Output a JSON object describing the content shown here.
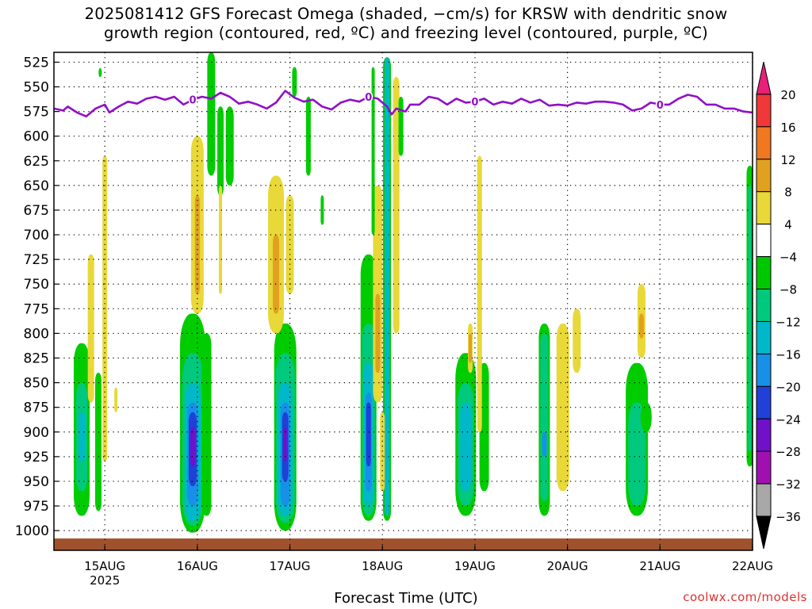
{
  "title_line1": "2025081412 GFS Forecast Omega (shaded, −cm/s) for KRSW with dendritic snow",
  "title_line2": "growth region (contoured, red, ºC) and freezing level (contoured, purple, ºC)",
  "watermark": "coolwx.com/models",
  "chart_data": {
    "type": "heatmap",
    "title": "2025081412 GFS Forecast Omega (shaded, −cm/s) for KRSW with dendritic snow growth region (contoured, red, ºC) and freezing level (contoured, purple, ºC)",
    "xlabel": "Forecast Time (UTC)",
    "ylabel": "",
    "x_ticks": [
      "15AUG",
      "16AUG",
      "17AUG",
      "18AUG",
      "19AUG",
      "20AUG",
      "21AUG",
      "22AUG"
    ],
    "x_year_label": "2025",
    "y_ticks": [
      525,
      550,
      575,
      600,
      625,
      650,
      675,
      700,
      725,
      750,
      775,
      800,
      825,
      850,
      875,
      900,
      925,
      950,
      975,
      1000
    ],
    "ylim": [
      1020,
      515
    ],
    "xlim_days_from_15aug": [
      -0.55,
      7.0
    ],
    "grid": true,
    "colorbar_levels": [
      20,
      16,
      12,
      8,
      4,
      -4,
      -8,
      -12,
      -16,
      -20,
      -24,
      -28,
      -32,
      -36
    ],
    "colorbar_colors": [
      "#e8207a",
      "#f03838",
      "#f07820",
      "#e0a020",
      "#e8d838",
      "#ffffff",
      "#00c800",
      "#00c87c",
      "#00b8c8",
      "#1890e8",
      "#2040d8",
      "#7010c8",
      "#a010b0",
      "#a8a8a8",
      "#000000"
    ],
    "freezing_level": {
      "label": "0",
      "points": [
        [
          -0.55,
          572
        ],
        [
          -0.45,
          574
        ],
        [
          -0.4,
          570
        ],
        [
          -0.3,
          576
        ],
        [
          -0.2,
          580
        ],
        [
          -0.1,
          572
        ],
        [
          0.0,
          568
        ],
        [
          0.05,
          576
        ],
        [
          0.15,
          570
        ],
        [
          0.25,
          565
        ],
        [
          0.35,
          567
        ],
        [
          0.45,
          562
        ],
        [
          0.55,
          560
        ],
        [
          0.65,
          563
        ],
        [
          0.75,
          560
        ],
        [
          0.85,
          568
        ],
        [
          0.95,
          563
        ],
        [
          1.05,
          560
        ],
        [
          1.15,
          562
        ],
        [
          1.25,
          556
        ],
        [
          1.35,
          560
        ],
        [
          1.45,
          567
        ],
        [
          1.55,
          565
        ],
        [
          1.65,
          568
        ],
        [
          1.75,
          572
        ],
        [
          1.85,
          566
        ],
        [
          1.95,
          554
        ],
        [
          2.05,
          561
        ],
        [
          2.15,
          565
        ],
        [
          2.25,
          563
        ],
        [
          2.35,
          570
        ],
        [
          2.45,
          573
        ],
        [
          2.55,
          566
        ],
        [
          2.65,
          563
        ],
        [
          2.75,
          565
        ],
        [
          2.85,
          560
        ],
        [
          2.95,
          562
        ],
        [
          3.0,
          566
        ],
        [
          3.05,
          570
        ],
        [
          3.1,
          578
        ],
        [
          3.15,
          572
        ],
        [
          3.25,
          575
        ],
        [
          3.3,
          568
        ],
        [
          3.4,
          568
        ],
        [
          3.5,
          560
        ],
        [
          3.6,
          562
        ],
        [
          3.7,
          568
        ],
        [
          3.8,
          562
        ],
        [
          3.9,
          566
        ],
        [
          4.0,
          565
        ],
        [
          4.1,
          562
        ],
        [
          4.2,
          568
        ],
        [
          4.3,
          565
        ],
        [
          4.4,
          567
        ],
        [
          4.5,
          562
        ],
        [
          4.6,
          566
        ],
        [
          4.7,
          563
        ],
        [
          4.8,
          569
        ],
        [
          4.9,
          568
        ],
        [
          5.0,
          569
        ],
        [
          5.1,
          566
        ],
        [
          5.2,
          567
        ],
        [
          5.3,
          565
        ],
        [
          5.4,
          565
        ],
        [
          5.5,
          566
        ],
        [
          5.6,
          568
        ],
        [
          5.7,
          574
        ],
        [
          5.8,
          572
        ],
        [
          5.9,
          566
        ],
        [
          6.0,
          568
        ],
        [
          6.1,
          568
        ],
        [
          6.2,
          562
        ],
        [
          6.3,
          558
        ],
        [
          6.4,
          560
        ],
        [
          6.5,
          568
        ],
        [
          6.6,
          568
        ],
        [
          6.7,
          572
        ],
        [
          6.8,
          572
        ],
        [
          6.9,
          575
        ],
        [
          7.0,
          576
        ]
      ]
    },
    "omega_regions": [
      {
        "day": -0.25,
        "levels": [
          [
            810,
            985,
            "g",
            10
          ],
          [
            850,
            960,
            "t",
            7
          ],
          [
            880,
            930,
            "c",
            4
          ]
        ]
      },
      {
        "day": -0.07,
        "levels": [
          [
            840,
            980,
            "g",
            4
          ]
        ]
      },
      {
        "day": 0.0,
        "levels": [
          [
            620,
            930,
            "y",
            3
          ]
        ]
      },
      {
        "day": -0.15,
        "levels": [
          [
            720,
            870,
            "y",
            4
          ],
          [
            775,
            850,
            "y",
            3
          ]
        ]
      },
      {
        "day": 0.12,
        "levels": [
          [
            855,
            880,
            "y",
            2
          ]
        ]
      },
      {
        "day": -0.05,
        "levels": [
          [
            531,
            540,
            "g",
            2
          ]
        ]
      },
      {
        "day": 0.95,
        "levels": [
          [
            780,
            1002,
            "g",
            16
          ],
          [
            820,
            995,
            "t",
            13
          ],
          [
            850,
            990,
            "c",
            10
          ],
          [
            870,
            975,
            "b",
            7
          ],
          [
            880,
            955,
            "i",
            5
          ],
          [
            895,
            935,
            "v",
            3
          ]
        ]
      },
      {
        "day": 1.1,
        "levels": [
          [
            800,
            985,
            "g",
            6
          ]
        ]
      },
      {
        "day": 1.0,
        "levels": [
          [
            600,
            780,
            "y",
            8
          ],
          [
            660,
            760,
            "o",
            3
          ]
        ]
      },
      {
        "day": 1.15,
        "levels": [
          [
            515,
            640,
            "g",
            5
          ],
          [
            555,
            630,
            "g",
            3
          ]
        ]
      },
      {
        "day": 1.25,
        "levels": [
          [
            570,
            660,
            "g",
            4
          ]
        ]
      },
      {
        "day": 1.35,
        "levels": [
          [
            570,
            650,
            "g",
            5
          ]
        ]
      },
      {
        "day": 1.25,
        "levels": [
          [
            650,
            760,
            "y",
            2
          ]
        ]
      },
      {
        "day": 1.95,
        "levels": [
          [
            790,
            1000,
            "g",
            14
          ],
          [
            820,
            992,
            "t",
            12
          ],
          [
            850,
            985,
            "c",
            9
          ],
          [
            870,
            975,
            "b",
            6
          ],
          [
            880,
            950,
            "i",
            4
          ],
          [
            895,
            930,
            "v",
            2
          ]
        ]
      },
      {
        "day": 1.85,
        "levels": [
          [
            640,
            800,
            "y",
            10
          ],
          [
            700,
            780,
            "o",
            4
          ]
        ]
      },
      {
        "day": 2.0,
        "levels": [
          [
            660,
            760,
            "y",
            5
          ]
        ]
      },
      {
        "day": 2.2,
        "levels": [
          [
            560,
            640,
            "g",
            3
          ]
        ]
      },
      {
        "day": 2.35,
        "levels": [
          [
            660,
            690,
            "g",
            2
          ]
        ]
      },
      {
        "day": 2.05,
        "levels": [
          [
            530,
            560,
            "g",
            3
          ]
        ]
      },
      {
        "day": 2.85,
        "levels": [
          [
            720,
            990,
            "g",
            10
          ],
          [
            790,
            985,
            "t",
            8
          ],
          [
            830,
            975,
            "c",
            6
          ],
          [
            860,
            960,
            "b",
            4
          ],
          [
            870,
            935,
            "i",
            3
          ]
        ]
      },
      {
        "day": 2.95,
        "levels": [
          [
            650,
            870,
            "y",
            6
          ],
          [
            760,
            840,
            "o",
            3
          ]
        ]
      },
      {
        "day": 3.05,
        "levels": [
          [
            520,
            990,
            "g",
            5
          ],
          [
            520,
            985,
            "c",
            3
          ]
        ]
      },
      {
        "day": 2.9,
        "levels": [
          [
            530,
            700,
            "g",
            2
          ]
        ]
      },
      {
        "day": 3.15,
        "levels": [
          [
            540,
            800,
            "y",
            4
          ]
        ]
      },
      {
        "day": 3.2,
        "levels": [
          [
            560,
            620,
            "g",
            3
          ]
        ]
      },
      {
        "day": 3.0,
        "levels": [
          [
            880,
            960,
            "y",
            3
          ]
        ]
      },
      {
        "day": 3.9,
        "levels": [
          [
            820,
            985,
            "g",
            13
          ],
          [
            850,
            975,
            "t",
            10
          ],
          [
            870,
            960,
            "c",
            7
          ]
        ]
      },
      {
        "day": 4.1,
        "levels": [
          [
            830,
            960,
            "g",
            6
          ]
        ]
      },
      {
        "day": 4.05,
        "levels": [
          [
            620,
            900,
            "y",
            3
          ]
        ]
      },
      {
        "day": 3.95,
        "levels": [
          [
            790,
            840,
            "y",
            3
          ],
          [
            800,
            830,
            "o",
            2
          ]
        ]
      },
      {
        "day": 4.75,
        "levels": [
          [
            790,
            985,
            "g",
            7
          ],
          [
            800,
            970,
            "t",
            5
          ],
          [
            900,
            925,
            "b",
            3
          ]
        ]
      },
      {
        "day": 4.95,
        "levels": [
          [
            790,
            960,
            "y",
            8
          ]
        ]
      },
      {
        "day": 5.1,
        "levels": [
          [
            775,
            840,
            "y",
            5
          ]
        ]
      },
      {
        "day": 5.75,
        "levels": [
          [
            830,
            985,
            "g",
            14
          ],
          [
            870,
            975,
            "t",
            11
          ]
        ]
      },
      {
        "day": 5.85,
        "levels": [
          [
            870,
            900,
            "g",
            7
          ]
        ]
      },
      {
        "day": 5.8,
        "levels": [
          [
            750,
            825,
            "y",
            5
          ],
          [
            780,
            805,
            "o",
            3
          ]
        ]
      },
      {
        "day": 6.97,
        "levels": [
          [
            630,
            935,
            "g",
            4
          ],
          [
            650,
            920,
            "t",
            2
          ]
        ]
      }
    ]
  }
}
